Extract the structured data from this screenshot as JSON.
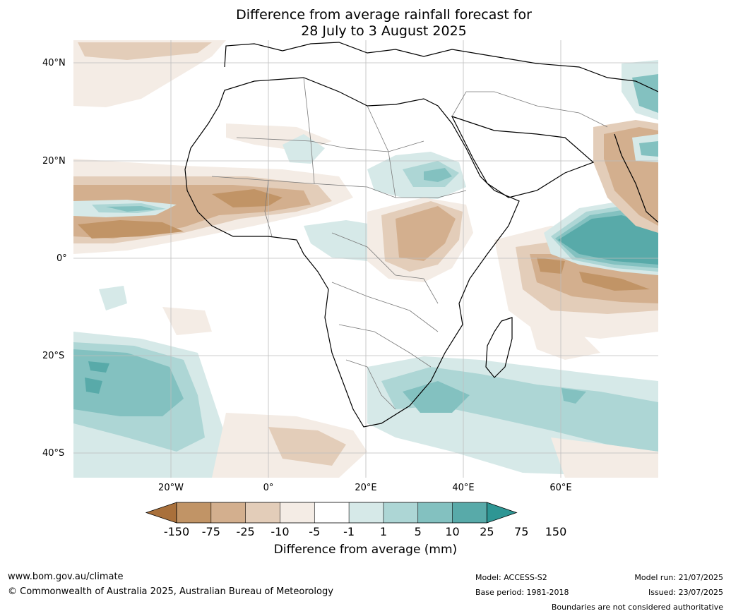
{
  "title": {
    "line1": "Difference from average rainfall forecast for",
    "line2": "28 July to 3 August 2025"
  },
  "map": {
    "lat_labels": [
      "40°N",
      "20°N",
      "0°",
      "20°S",
      "40°S"
    ],
    "lon_labels": [
      "20°W",
      "0°",
      "20°E",
      "40°E",
      "60°E"
    ],
    "extent": {
      "lon": [
        -40,
        80
      ],
      "lat": [
        -45,
        45
      ]
    }
  },
  "colorbar": {
    "ticks": [
      "-150",
      "-75",
      "-25",
      "-10",
      "-5",
      "-1",
      "1",
      "5",
      "10",
      "25",
      "75",
      "150"
    ],
    "colors": [
      "#a9703b",
      "#c19466",
      "#d3af8e",
      "#e3cdb9",
      "#f4ece5",
      "#ffffff",
      "#d6e9e8",
      "#add6d5",
      "#83c1c0",
      "#58aaa9",
      "#2e9694"
    ],
    "label": "Difference from average (mm)"
  },
  "footer": {
    "website": "www.bom.gov.au/climate",
    "copyright": "© Commonwealth of Australia 2025, Australian Bureau of Meteorology",
    "model": "Model: ACCESS-S2",
    "base_period": "Base period: 1981-2018",
    "model_run": "Model run: 21/07/2025",
    "issued": "Issued: 23/07/2025",
    "disclaimer": "Boundaries are not considered authoritative"
  }
}
